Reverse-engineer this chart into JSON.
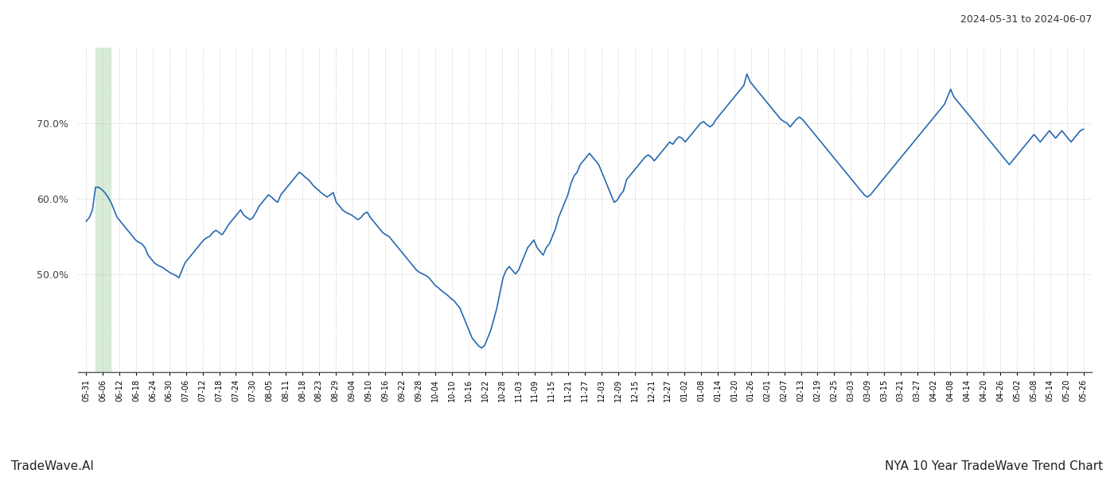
{
  "title_top_right": "2024-05-31 to 2024-06-07",
  "footer_left": "TradeWave.AI",
  "footer_right": "NYA 10 Year TradeWave Trend Chart",
  "line_color": "#2768b0",
  "highlight_color": "#d8ead8",
  "background_color": "#ffffff",
  "grid_color": "#bbbbbb",
  "ylim_min": 37,
  "ylim_max": 80,
  "yticks": [
    50.0,
    60.0,
    70.0
  ],
  "x_labels": [
    "05-31",
    "06-06",
    "06-12",
    "06-18",
    "06-24",
    "06-30",
    "07-06",
    "07-12",
    "07-18",
    "07-24",
    "07-30",
    "08-05",
    "08-11",
    "08-18",
    "08-23",
    "08-29",
    "09-04",
    "09-10",
    "09-16",
    "09-22",
    "09-28",
    "10-04",
    "10-10",
    "10-16",
    "10-22",
    "10-28",
    "11-03",
    "11-09",
    "11-15",
    "11-21",
    "11-27",
    "12-03",
    "12-09",
    "12-15",
    "12-21",
    "12-27",
    "01-02",
    "01-08",
    "01-14",
    "01-20",
    "01-26",
    "02-01",
    "02-07",
    "02-13",
    "02-19",
    "02-25",
    "03-03",
    "03-09",
    "03-15",
    "03-21",
    "03-27",
    "04-02",
    "04-08",
    "04-14",
    "04-20",
    "04-26",
    "05-02",
    "05-08",
    "05-14",
    "05-20",
    "05-26"
  ],
  "highlight_label": "06-06",
  "data_y": [
    57.0,
    57.5,
    58.5,
    61.5,
    61.5,
    61.2,
    60.8,
    60.2,
    59.5,
    58.5,
    57.5,
    57.0,
    56.5,
    56.0,
    55.5,
    55.0,
    54.5,
    54.2,
    54.0,
    53.5,
    52.5,
    52.0,
    51.5,
    51.2,
    51.0,
    50.8,
    50.5,
    50.2,
    50.0,
    49.8,
    49.5,
    50.5,
    51.5,
    52.0,
    52.5,
    53.0,
    53.5,
    54.0,
    54.5,
    54.8,
    55.0,
    55.5,
    55.8,
    55.5,
    55.2,
    55.8,
    56.5,
    57.0,
    57.5,
    58.0,
    58.5,
    57.8,
    57.5,
    57.2,
    57.5,
    58.2,
    59.0,
    59.5,
    60.0,
    60.5,
    60.2,
    59.8,
    59.5,
    60.5,
    61.0,
    61.5,
    62.0,
    62.5,
    63.0,
    63.5,
    63.2,
    62.8,
    62.5,
    62.0,
    61.5,
    61.2,
    60.8,
    60.5,
    60.2,
    60.5,
    60.8,
    59.5,
    59.0,
    58.5,
    58.2,
    58.0,
    57.8,
    57.5,
    57.2,
    57.5,
    58.0,
    58.2,
    57.5,
    57.0,
    56.5,
    56.0,
    55.5,
    55.2,
    55.0,
    54.5,
    54.0,
    53.5,
    53.0,
    52.5,
    52.0,
    51.5,
    51.0,
    50.5,
    50.2,
    50.0,
    49.8,
    49.5,
    49.0,
    48.5,
    48.2,
    47.8,
    47.5,
    47.2,
    46.8,
    46.5,
    46.0,
    45.5,
    44.5,
    43.5,
    42.5,
    41.5,
    41.0,
    40.5,
    40.2,
    40.5,
    41.5,
    42.5,
    44.0,
    45.5,
    47.5,
    49.5,
    50.5,
    51.0,
    50.5,
    50.0,
    50.5,
    51.5,
    52.5,
    53.5,
    54.0,
    54.5,
    53.5,
    53.0,
    52.5,
    53.5,
    54.0,
    55.0,
    56.0,
    57.5,
    58.5,
    59.5,
    60.5,
    62.0,
    63.0,
    63.5,
    64.5,
    65.0,
    65.5,
    66.0,
    65.5,
    65.0,
    64.5,
    63.5,
    62.5,
    61.5,
    60.5,
    59.5,
    59.8,
    60.5,
    61.0,
    62.5,
    63.0,
    63.5,
    64.0,
    64.5,
    65.0,
    65.5,
    65.8,
    65.5,
    65.0,
    65.5,
    66.0,
    66.5,
    67.0,
    67.5,
    67.2,
    67.8,
    68.2,
    68.0,
    67.5,
    68.0,
    68.5,
    69.0,
    69.5,
    70.0,
    70.2,
    69.8,
    69.5,
    69.8,
    70.5,
    71.0,
    71.5,
    72.0,
    72.5,
    73.0,
    73.5,
    74.0,
    74.5,
    75.0,
    76.5,
    75.5,
    75.0,
    74.5,
    74.0,
    73.5,
    73.0,
    72.5,
    72.0,
    71.5,
    71.0,
    70.5,
    70.2,
    70.0,
    69.5,
    70.0,
    70.5,
    70.8,
    70.5,
    70.0,
    69.5,
    69.0,
    68.5,
    68.0,
    67.5,
    67.0,
    66.5,
    66.0,
    65.5,
    65.0,
    64.5,
    64.0,
    63.5,
    63.0,
    62.5,
    62.0,
    61.5,
    61.0,
    60.5,
    60.2,
    60.5,
    61.0,
    61.5,
    62.0,
    62.5,
    63.0,
    63.5,
    64.0,
    64.5,
    65.0,
    65.5,
    66.0,
    66.5,
    67.0,
    67.5,
    68.0,
    68.5,
    69.0,
    69.5,
    70.0,
    70.5,
    71.0,
    71.5,
    72.0,
    72.5,
    73.5,
    74.5,
    73.5,
    73.0,
    72.5,
    72.0,
    71.5,
    71.0,
    70.5,
    70.0,
    69.5,
    69.0,
    68.5,
    68.0,
    67.5,
    67.0,
    66.5,
    66.0,
    65.5,
    65.0,
    64.5,
    65.0,
    65.5,
    66.0,
    66.5,
    67.0,
    67.5,
    68.0,
    68.5,
    68.0,
    67.5,
    68.0,
    68.5,
    69.0,
    68.5,
    68.0,
    68.5,
    69.0,
    68.5,
    68.0,
    67.5,
    68.0,
    68.5,
    69.0,
    69.2
  ]
}
